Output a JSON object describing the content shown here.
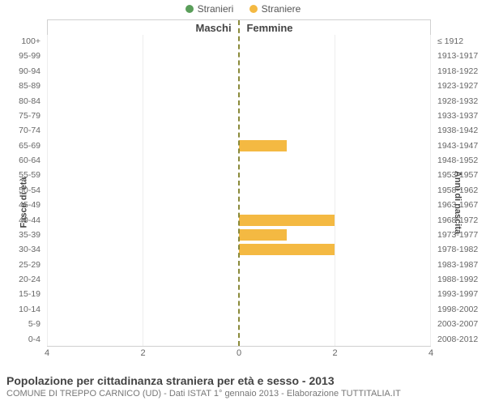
{
  "legend": {
    "male": {
      "label": "Stranieri",
      "color": "#5a9e5a"
    },
    "female": {
      "label": "Straniere",
      "color": "#f4b942"
    }
  },
  "columns": {
    "male": "Maschi",
    "female": "Femmine"
  },
  "y_left_label": "Fasce di età",
  "y_right_label": "Anni di nascita",
  "age_bands": [
    "0-4",
    "5-9",
    "10-14",
    "15-19",
    "20-24",
    "25-29",
    "30-34",
    "35-39",
    "40-44",
    "45-49",
    "50-54",
    "55-59",
    "60-64",
    "65-69",
    "70-74",
    "75-79",
    "80-84",
    "85-89",
    "90-94",
    "95-99",
    "100+"
  ],
  "birth_years": [
    "2008-2012",
    "2003-2007",
    "1998-2002",
    "1993-1997",
    "1988-1992",
    "1983-1987",
    "1978-1982",
    "1973-1977",
    "1968-1972",
    "1963-1967",
    "1958-1962",
    "1953-1957",
    "1948-1952",
    "1943-1947",
    "1938-1942",
    "1933-1937",
    "1928-1932",
    "1923-1927",
    "1918-1922",
    "1913-1917",
    "≤ 1912"
  ],
  "series": {
    "male": [
      0,
      0,
      0,
      0,
      0,
      0,
      0,
      0,
      0,
      0,
      0,
      0,
      0,
      0,
      0,
      0,
      0,
      0,
      0,
      0,
      0
    ],
    "female": [
      0,
      0,
      0,
      0,
      0,
      0,
      2,
      1,
      2,
      0,
      0,
      0,
      0,
      1,
      0,
      0,
      0,
      0,
      0,
      0,
      0
    ]
  },
  "colors": {
    "male_bar": "#5a9e5a",
    "female_bar": "#f4b942",
    "grid": "#ededed",
    "center_line": "#8a8a3a",
    "background": "#ffffff",
    "text": "#555555"
  },
  "x_axis": {
    "max": 4,
    "ticks_left": [
      4,
      2,
      0
    ],
    "ticks_right": [
      0,
      2,
      4
    ]
  },
  "typography": {
    "tick_fontsize_pt": 10.5,
    "title_fontsize_pt": 14,
    "subtitle_fontsize_pt": 11,
    "col_header_fontsize_pt": 13
  },
  "title": "Popolazione per cittadinanza straniera per età e sesso - 2013",
  "subtitle": "COMUNE DI TREPPO CARNICO (UD) - Dati ISTAT 1° gennaio 2013 - Elaborazione TUTTITALIA.IT"
}
